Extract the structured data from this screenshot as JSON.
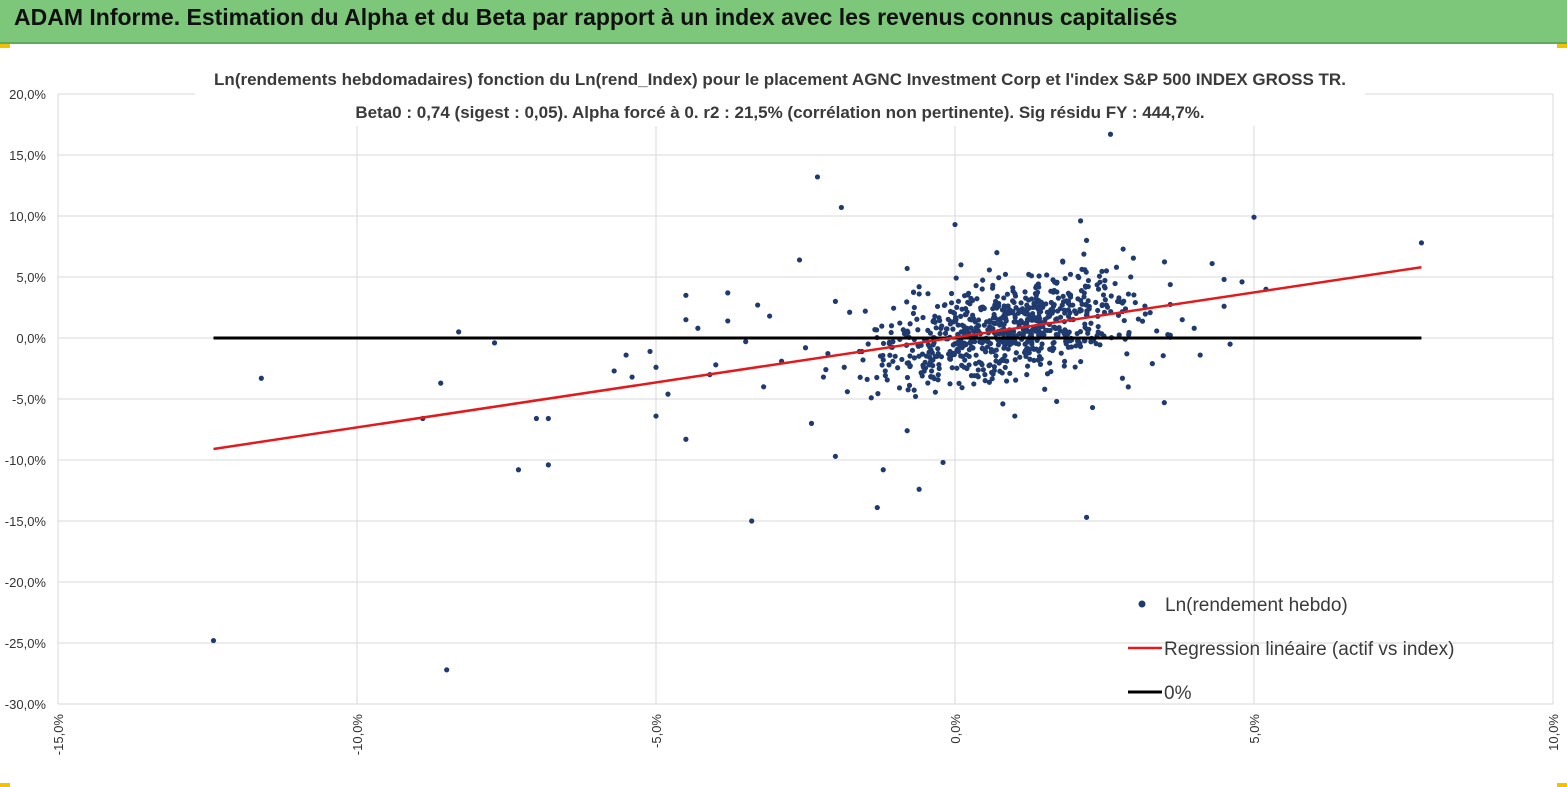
{
  "header": {
    "title": "ADAM Informe. Estimation du Alpha et du Beta par rapport à un index avec les revenus connus capitalisés"
  },
  "colors": {
    "header_bg": "#7dc77b",
    "points": "#1f3a6e",
    "regression": "#e31a1c",
    "zero_line": "#000000"
  },
  "chart_data": {
    "type": "scatter",
    "title_line1": "Ln(rendements hebdomadaires) fonction du Ln(rend_Index) pour le placement AGNC Investment Corp et l'index S&P 500 INDEX GROSS TR.",
    "title_line2": "Beta0 : 0,74 (sigest : 0,05). Alpha forcé à 0. r2 : 21,5% (corrélation non pertinente). Sig résidu FY : 444,7%.",
    "xlim": [
      -15,
      10
    ],
    "ylim": [
      -30,
      20
    ],
    "x_ticks": [
      -15,
      -10,
      -5,
      0,
      5,
      10
    ],
    "x_tick_labels": [
      "-15,0%",
      "-10,0%",
      "-5,0%",
      "0,0%",
      "5,0%",
      "10,0%"
    ],
    "y_ticks": [
      20,
      15,
      10,
      5,
      0,
      -5,
      -10,
      -15,
      -20,
      -25,
      -30
    ],
    "y_tick_labels": [
      "20,0%",
      "15,0%",
      "10,0%",
      "5,0%",
      "0,0%",
      "-5,0%",
      "-10,0%",
      "-15,0%",
      "-20,0%",
      "-25,0%",
      "-30,0%"
    ],
    "grid": true,
    "legend_position": "bottom-right",
    "series": [
      {
        "name": "Ln(rendement hebdo)",
        "kind": "scatter",
        "points": [
          [
            -12.4,
            -24.8
          ],
          [
            -11.6,
            -3.3
          ],
          [
            -8.9,
            -6.6
          ],
          [
            -8.6,
            -3.7
          ],
          [
            -8.5,
            -27.2
          ],
          [
            -8.3,
            0.5
          ],
          [
            -7.7,
            -0.4
          ],
          [
            -7.3,
            -10.8
          ],
          [
            -7.0,
            -6.6
          ],
          [
            -6.8,
            -6.6
          ],
          [
            -6.8,
            -10.4
          ],
          [
            -5.7,
            -2.7
          ],
          [
            -5.5,
            -1.4
          ],
          [
            -5.4,
            -3.2
          ],
          [
            -5.1,
            -1.1
          ],
          [
            -5.0,
            -6.4
          ],
          [
            -5.0,
            -2.4
          ],
          [
            -4.8,
            -4.6
          ],
          [
            -4.5,
            3.5
          ],
          [
            -4.5,
            1.5
          ],
          [
            -4.5,
            -8.3
          ],
          [
            -4.3,
            0.8
          ],
          [
            -4.1,
            -3.0
          ],
          [
            -4.0,
            -2.2
          ],
          [
            -3.8,
            3.7
          ],
          [
            -3.8,
            1.4
          ],
          [
            -3.5,
            -0.3
          ],
          [
            -3.4,
            -15.0
          ],
          [
            -3.3,
            2.7
          ],
          [
            -3.2,
            -4.0
          ],
          [
            -3.1,
            1.8
          ],
          [
            -2.9,
            -1.9
          ],
          [
            -2.6,
            6.4
          ],
          [
            -2.5,
            -0.8
          ],
          [
            -2.4,
            -7.0
          ],
          [
            -2.3,
            13.2
          ],
          [
            -2.2,
            -3.2
          ],
          [
            -2.0,
            -9.7
          ],
          [
            -2.0,
            3.0
          ],
          [
            -1.9,
            10.7
          ],
          [
            -1.8,
            -4.4
          ],
          [
            -1.6,
            -1.1
          ],
          [
            -1.5,
            2.2
          ],
          [
            -1.4,
            -4.9
          ],
          [
            -1.3,
            -13.9
          ],
          [
            -1.2,
            -10.8
          ],
          [
            -1.2,
            -1.8
          ],
          [
            -1.0,
            -1.5
          ],
          [
            -0.8,
            -7.6
          ],
          [
            -0.8,
            5.7
          ],
          [
            -0.6,
            -12.4
          ],
          [
            -0.6,
            4.2
          ],
          [
            -0.5,
            -2.0
          ],
          [
            -0.4,
            -3.2
          ],
          [
            -0.3,
            -1.5
          ],
          [
            -0.2,
            -10.2
          ],
          [
            0.0,
            9.3
          ],
          [
            0.1,
            6.0
          ],
          [
            0.2,
            -2.5
          ],
          [
            0.5,
            -3.0
          ],
          [
            0.7,
            7.0
          ],
          [
            0.8,
            -5.4
          ],
          [
            1.0,
            -6.4
          ],
          [
            1.2,
            -3.0
          ],
          [
            1.5,
            -4.2
          ],
          [
            1.7,
            -5.2
          ],
          [
            1.7,
            4.5
          ],
          [
            1.8,
            6.3
          ],
          [
            2.1,
            9.6
          ],
          [
            2.2,
            -14.7
          ],
          [
            2.2,
            8.0
          ],
          [
            2.3,
            -5.7
          ],
          [
            2.4,
            4.0
          ],
          [
            2.6,
            16.7
          ],
          [
            2.7,
            5.8
          ],
          [
            2.8,
            -3.3
          ],
          [
            2.9,
            3.6
          ],
          [
            3.3,
            -2.1
          ],
          [
            3.5,
            -5.3
          ],
          [
            3.8,
            1.5
          ],
          [
            4.0,
            0.8
          ],
          [
            4.1,
            -1.4
          ],
          [
            4.3,
            6.1
          ],
          [
            4.5,
            4.8
          ],
          [
            4.5,
            2.6
          ],
          [
            4.6,
            -0.5
          ],
          [
            4.8,
            4.6
          ],
          [
            5.0,
            9.9
          ],
          [
            5.2,
            4.0
          ],
          [
            7.8,
            7.8
          ]
        ],
        "cloud": {
          "count": 760,
          "x_mean": 0.8,
          "x_sd": 1.05,
          "y_sd": 1.8,
          "seed": 17
        }
      },
      {
        "name": "Regression linéaire (actif vs index)",
        "kind": "line",
        "x": [
          -12.4,
          7.8
        ],
        "y": [
          -9.1,
          5.8
        ]
      },
      {
        "name": "0%",
        "kind": "line",
        "x": [
          -12.4,
          7.8
        ],
        "y": [
          0,
          0
        ]
      }
    ]
  }
}
